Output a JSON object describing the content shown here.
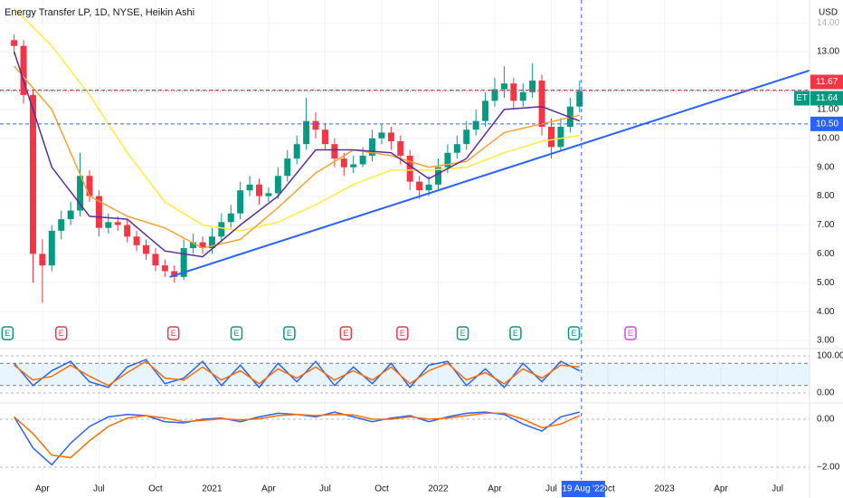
{
  "chart_data": [
    {
      "type": "candlestick",
      "title": "Energy Transfer LP, 1D, NYSE, Heikin Ashi",
      "currency": "USD",
      "xlim": [
        -1.5,
        84.4
      ],
      "ylim": [
        2.72,
        14.79
      ],
      "grid": true,
      "xticks": [
        {
          "value": 3,
          "label": "Apr"
        },
        {
          "value": 9,
          "label": "Jul"
        },
        {
          "value": 15,
          "label": "Oct"
        },
        {
          "value": 21,
          "label": "2021"
        },
        {
          "value": 27,
          "label": "Apr"
        },
        {
          "value": 33,
          "label": "Jul"
        },
        {
          "value": 39,
          "label": "Oct"
        },
        {
          "value": 45,
          "label": "2022"
        },
        {
          "value": 51,
          "label": "Apr"
        },
        {
          "value": 57,
          "label": "Jul"
        },
        {
          "value": 63,
          "label": "Oct"
        },
        {
          "value": 69,
          "label": "2023"
        },
        {
          "value": 75,
          "label": "Apr"
        },
        {
          "value": 81,
          "label": "Jul"
        }
      ],
      "yticks": [
        {
          "value": 3,
          "label": "3.00"
        },
        {
          "value": 4,
          "label": "4.00"
        },
        {
          "value": 5,
          "label": "5.00"
        },
        {
          "value": 6,
          "label": "6.00"
        },
        {
          "value": 7,
          "label": "7.00"
        },
        {
          "value": 8,
          "label": "8.00"
        },
        {
          "value": 9,
          "label": "9.00"
        },
        {
          "value": 10,
          "label": "10.00"
        },
        {
          "value": 11,
          "label": "11.00"
        },
        {
          "value": 13,
          "label": "13.00"
        },
        {
          "value": 14,
          "label": "14.00"
        }
      ],
      "up_color": "#089981",
      "down_color": "#f23645",
      "open": [
        13.4,
        13.2,
        11.5,
        6.0,
        5.6,
        6.8,
        7.2,
        7.5,
        8.7,
        8.0,
        6.9,
        7.1,
        7.0,
        6.6,
        6.3,
        6.0,
        5.6,
        5.4,
        5.2,
        6.2,
        6.4,
        6.2,
        6.6,
        7.1,
        7.4,
        8.2,
        8.4,
        8.0,
        8.1,
        8.7,
        9.3,
        9.8,
        10.6,
        10.3,
        9.8,
        9.3,
        9.0,
        9.1,
        9.4,
        10.0,
        10.2,
        9.9,
        9.4,
        8.5,
        8.2,
        8.4,
        9.0,
        9.5,
        9.8,
        10.3,
        10.6,
        11.3,
        11.7,
        11.9,
        11.3,
        11.6,
        12.0,
        10.4,
        9.7,
        10.4,
        11.1
      ],
      "high": [
        13.6,
        13.4,
        11.7,
        6.5,
        7.0,
        7.5,
        7.8,
        9.5,
        8.9,
        8.2,
        7.4,
        7.3,
        7.2,
        6.8,
        6.5,
        6.2,
        5.8,
        5.6,
        6.5,
        6.7,
        6.6,
        6.9,
        7.4,
        7.7,
        8.5,
        8.7,
        8.6,
        8.3,
        9.0,
        9.6,
        10.1,
        11.4,
        10.9,
        10.5,
        10.0,
        9.5,
        9.4,
        9.7,
        10.3,
        10.5,
        10.4,
        10.1,
        9.6,
        8.7,
        8.7,
        9.3,
        9.8,
        10.1,
        10.6,
        11.0,
        11.6,
        12.1,
        12.5,
        12.1,
        11.9,
        12.6,
        12.2,
        10.7,
        10.7,
        11.4,
        12.0
      ],
      "low": [
        12.9,
        11.2,
        5.0,
        4.3,
        5.4,
        6.5,
        7.0,
        7.3,
        7.8,
        6.6,
        6.7,
        6.8,
        6.4,
        6.1,
        5.8,
        5.4,
        5.2,
        5.0,
        5.1,
        6.0,
        6.0,
        6.0,
        6.4,
        6.9,
        7.2,
        8.0,
        7.7,
        7.8,
        7.9,
        8.5,
        9.1,
        9.6,
        10.0,
        9.6,
        9.0,
        8.7,
        8.8,
        9.0,
        9.2,
        9.8,
        9.6,
        9.1,
        8.2,
        7.9,
        8.0,
        8.2,
        8.8,
        9.3,
        9.6,
        10.1,
        10.4,
        11.1,
        11.4,
        11.0,
        11.1,
        11.4,
        10.1,
        9.3,
        9.6,
        10.2,
        10.9
      ],
      "close": [
        13.2,
        11.5,
        6.0,
        5.6,
        6.8,
        7.2,
        7.5,
        8.7,
        8.0,
        6.9,
        7.1,
        7.0,
        6.6,
        6.3,
        6.0,
        5.6,
        5.4,
        5.2,
        6.2,
        6.4,
        6.2,
        6.6,
        7.1,
        7.4,
        8.2,
        8.4,
        8.0,
        8.1,
        8.7,
        9.3,
        9.8,
        10.6,
        10.3,
        9.8,
        9.3,
        9.0,
        9.1,
        9.4,
        10.0,
        10.2,
        9.9,
        9.4,
        8.5,
        8.2,
        8.4,
        9.0,
        9.5,
        9.8,
        10.3,
        10.6,
        11.3,
        11.7,
        11.9,
        11.3,
        11.6,
        12.0,
        10.4,
        9.7,
        10.4,
        11.1,
        11.64
      ],
      "series": [
        {
          "color": "#ffeb3b",
          "x": [
            0,
            4,
            8,
            12,
            16,
            20,
            24,
            28,
            32,
            36,
            40,
            44,
            48,
            52,
            56,
            60
          ],
          "values": [
            14.5,
            13.2,
            11.5,
            9.5,
            7.8,
            7.0,
            6.8,
            7.1,
            7.7,
            8.4,
            8.9,
            8.9,
            9.0,
            9.5,
            9.9,
            10.1
          ]
        },
        {
          "color": "#f7a130",
          "x": [
            0,
            4,
            8,
            12,
            16,
            20,
            24,
            28,
            32,
            36,
            40,
            44,
            48,
            52,
            56,
            60
          ],
          "values": [
            12.5,
            11.0,
            8.0,
            7.3,
            6.9,
            6.2,
            6.5,
            7.6,
            8.8,
            9.6,
            9.4,
            9.0,
            9.2,
            10.2,
            10.5,
            10.8
          ]
        },
        {
          "color": "#5b2c9a",
          "x": [
            0,
            4,
            8,
            12,
            16,
            20,
            24,
            28,
            32,
            36,
            40,
            44,
            48,
            52,
            56,
            60
          ],
          "values": [
            13.0,
            9.0,
            7.3,
            7.2,
            6.1,
            5.9,
            7.0,
            8.0,
            9.6,
            9.6,
            9.5,
            8.6,
            9.3,
            11.0,
            11.1,
            10.6
          ]
        }
      ],
      "trendline": {
        "color": "#2962ff",
        "x": [
          16.5,
          84.4
        ],
        "y": [
          5.2,
          12.35
        ]
      },
      "price_lines": [
        {
          "value": 11.67,
          "label": "11.67",
          "color": "#f23645"
        },
        {
          "value": 11.64,
          "label": "11.64",
          "name": "ET",
          "color": "#089981"
        },
        {
          "value": 10.5,
          "label": "10.50",
          "color": "#2962ff"
        }
      ],
      "crosshair": {
        "x": 60.2,
        "label": "19 Aug '22"
      },
      "earnings_label": "E",
      "earnings": [
        {
          "x": -0.7,
          "color": "#089981"
        },
        {
          "x": 5.0,
          "color": "#f23645"
        },
        {
          "x": 16.9,
          "color": "#f23645"
        },
        {
          "x": 23.6,
          "color": "#089981"
        },
        {
          "x": 29.2,
          "color": "#089981"
        },
        {
          "x": 35.2,
          "color": "#f23645"
        },
        {
          "x": 41.2,
          "color": "#f23645"
        },
        {
          "x": 47.6,
          "color": "#089981"
        },
        {
          "x": 53.2,
          "color": "#089981"
        },
        {
          "x": 59.4,
          "color": "#089981"
        },
        {
          "x": 65.4,
          "color": "#e040fb"
        }
      ]
    },
    {
      "type": "line",
      "ylim": [
        -26.8,
        119.5
      ],
      "yticks": [
        {
          "value": 0,
          "label": "0.00"
        },
        {
          "value": 100,
          "label": "100.00"
        }
      ],
      "bands": [
        20,
        80
      ],
      "series": [
        {
          "color": "#2962ff",
          "x": [
            0,
            2,
            4,
            6,
            8,
            10,
            12,
            14,
            16,
            18,
            20,
            22,
            24,
            26,
            28,
            30,
            32,
            34,
            36,
            38,
            40,
            42,
            44,
            46,
            48,
            50,
            52,
            54,
            56,
            58,
            60
          ],
          "values": [
            80,
            20,
            60,
            85,
            30,
            15,
            70,
            90,
            25,
            40,
            85,
            20,
            75,
            15,
            80,
            30,
            85,
            20,
            70,
            25,
            80,
            15,
            75,
            85,
            20,
            65,
            15,
            80,
            30,
            85,
            60
          ]
        },
        {
          "color": "#ff6d00",
          "x": [
            0,
            2,
            4,
            6,
            8,
            10,
            12,
            14,
            16,
            18,
            20,
            22,
            24,
            26,
            28,
            30,
            32,
            34,
            36,
            38,
            40,
            42,
            44,
            46,
            48,
            50,
            52,
            54,
            56,
            58,
            60
          ],
          "values": [
            75,
            35,
            45,
            75,
            45,
            20,
            55,
            85,
            40,
            35,
            70,
            35,
            60,
            25,
            65,
            40,
            70,
            35,
            60,
            35,
            70,
            25,
            60,
            80,
            35,
            55,
            25,
            65,
            40,
            75,
            70
          ]
        }
      ]
    },
    {
      "type": "line",
      "ylim": [
        -2.53,
        0.68
      ],
      "yticks": [
        {
          "value": 0,
          "label": "0.00"
        },
        {
          "value": -2,
          "label": "−2.00"
        }
      ],
      "series": [
        {
          "color": "#2962ff",
          "x": [
            0,
            2,
            4,
            6,
            8,
            10,
            12,
            14,
            16,
            18,
            20,
            22,
            24,
            26,
            28,
            30,
            32,
            34,
            36,
            38,
            40,
            42,
            44,
            46,
            48,
            50,
            52,
            54,
            56,
            58,
            60
          ],
          "values": [
            0.1,
            -1.2,
            -1.9,
            -1.0,
            -0.3,
            0.1,
            0.2,
            0.15,
            -0.1,
            -0.15,
            0,
            0.05,
            -0.1,
            0.1,
            0.25,
            0.2,
            0.1,
            0.3,
            0.1,
            -0.1,
            0.05,
            0.15,
            -0.1,
            0.1,
            0.25,
            0.3,
            0.2,
            -0.2,
            -0.5,
            0.1,
            0.3
          ]
        },
        {
          "color": "#ff6d00",
          "x": [
            0,
            2,
            4,
            6,
            8,
            10,
            12,
            14,
            16,
            18,
            20,
            22,
            24,
            26,
            28,
            30,
            32,
            34,
            36,
            38,
            40,
            42,
            44,
            46,
            48,
            50,
            52,
            54,
            56,
            58,
            60
          ],
          "values": [
            0.1,
            -0.6,
            -1.5,
            -1.6,
            -0.9,
            -0.3,
            0.05,
            0.15,
            0.05,
            -0.1,
            -0.05,
            0.02,
            -0.03,
            0.02,
            0.15,
            0.2,
            0.15,
            0.2,
            0.18,
            0.0,
            0.0,
            0.1,
            0.0,
            0.05,
            0.15,
            0.25,
            0.25,
            0.0,
            -0.35,
            -0.2,
            0.15
          ]
        }
      ]
    }
  ]
}
